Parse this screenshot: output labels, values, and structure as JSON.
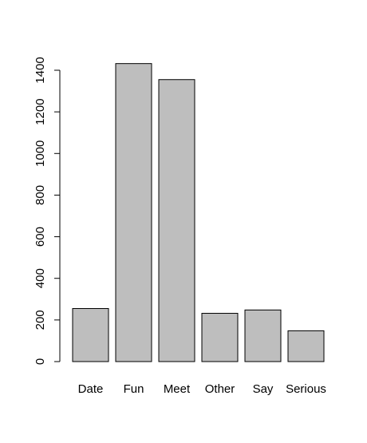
{
  "chart_data": {
    "type": "bar",
    "categories": [
      "Date",
      "Fun",
      "Meet",
      "Other",
      "Say",
      "Serious"
    ],
    "values": [
      255,
      1432,
      1355,
      232,
      248,
      148
    ],
    "ylim": [
      0,
      1400
    ],
    "yticks": [
      0,
      200,
      400,
      600,
      800,
      1000,
      1200,
      1400
    ],
    "grid": false,
    "colors": {
      "bar_fill": "#bebebe",
      "bar_stroke": "#000000"
    }
  }
}
